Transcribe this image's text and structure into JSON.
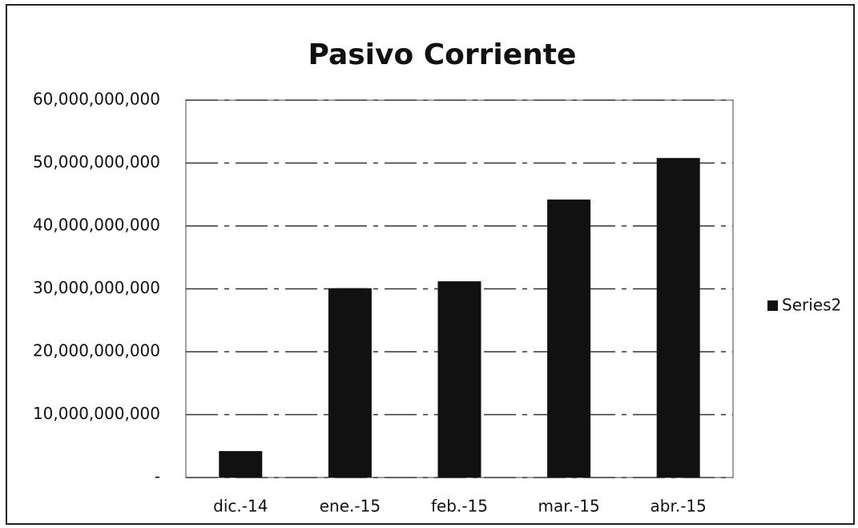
{
  "chart_data": {
    "type": "bar",
    "title": "Pasivo Corriente",
    "categories": [
      "dic.-14",
      "ene.-15",
      "feb.-15",
      "mar.-15",
      "abr.-15"
    ],
    "series": [
      {
        "name": "Series2",
        "color": "#111111",
        "values": [
          4200000000,
          30100000000,
          31200000000,
          44200000000,
          50800000000
        ]
      }
    ],
    "ylim": [
      0,
      60000000000
    ],
    "yticks": [
      {
        "value": 0,
        "label": "-"
      },
      {
        "value": 10000000000,
        "label": "10,000,000,000"
      },
      {
        "value": 20000000000,
        "label": "20,000,000,000"
      },
      {
        "value": 30000000000,
        "label": "30,000,000,000"
      },
      {
        "value": 40000000000,
        "label": "40,000,000,000"
      },
      {
        "value": 50000000000,
        "label": "50,000,000,000"
      },
      {
        "value": 60000000000,
        "label": "60,000,000,000"
      }
    ],
    "grid": true,
    "legend": "right"
  }
}
